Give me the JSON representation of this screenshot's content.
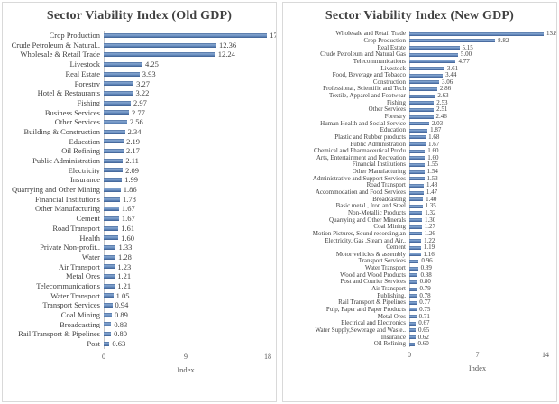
{
  "colors": {
    "bar": "#4f81bd",
    "panel_border": "#d9d9d9",
    "label_text": "#404040",
    "axis_text": "#595959",
    "axis_line": "#c6c6c6",
    "background": "#ffffff"
  },
  "chart_data": [
    {
      "type": "bar",
      "orientation": "horizontal",
      "title": "Sector Viability Index (Old GDP)",
      "xlabel": "Index",
      "xlim": [
        0,
        18
      ],
      "xticks": [
        0,
        9,
        18
      ],
      "grid": false,
      "legend": null,
      "categories": [
        "Crop Production",
        "Crude Petroleum & Natural..",
        "Wholesale & Retail Trade",
        "Livestock",
        "Real Estate",
        "Forestry",
        "Hotel & Restaurants",
        "Fishing",
        "Business Services",
        "Other Services",
        "Building & Construction",
        "Education",
        "Oil Refining",
        "Public Administration",
        "Electricity",
        "Insurance",
        "Quarrying and Other Mining",
        "Financial Institutions",
        "Other Manufacturing",
        "Cement",
        "Road Transport",
        "Health",
        "Private Non-profit..",
        "Water",
        "Air Transport",
        "Metal Ores",
        "Telecommunications",
        "Water Transport",
        "Transport Services",
        "Coal Mining",
        "Broadcasting",
        "Rail Transport & Pipelines",
        "Post"
      ],
      "values": [
        17.93,
        12.36,
        12.24,
        4.25,
        3.93,
        3.27,
        3.22,
        2.97,
        2.77,
        2.56,
        2.34,
        2.19,
        2.17,
        2.11,
        2.09,
        1.99,
        1.86,
        1.78,
        1.67,
        1.67,
        1.61,
        1.6,
        1.33,
        1.28,
        1.23,
        1.21,
        1.21,
        1.05,
        0.94,
        0.89,
        0.83,
        0.8,
        0.63
      ]
    },
    {
      "type": "bar",
      "orientation": "horizontal",
      "title": "Sector Viability Index (New GDP)",
      "xlabel": "Index",
      "xlim": [
        0,
        14
      ],
      "xticks": [
        0,
        7,
        14
      ],
      "grid": false,
      "legend": null,
      "categories": [
        "Wholesale and Retail Trade",
        "Crop Production",
        "Real Estate",
        "Crude Petroleum and Natural Gas",
        "Telecommunications",
        "Livestock",
        "Food, Beverage and Tobacco",
        "Construction",
        "Professional, Scientific and Tech",
        "Textile, Apparel and Footwear",
        "Fishing",
        "Other Services",
        "Forestry",
        "Human Health and Social Service",
        "Education",
        "Plastic and Rubber products",
        "Public Administration",
        "Chemical and Pharmaceutical Produ",
        "Arts, Entertainment and Recreation",
        "Financial Institutions",
        "Other Manufacturing",
        "Administrative and Support Services",
        "Road Transport",
        "Accommodation and Food Services",
        "Broadcasting",
        "Basic metal , Iron and Steel",
        "Non-Metallic Products",
        "Quarrying and Other Minerals",
        "Coal Mining",
        "Motion Pictures, Sound recording an",
        "Electricity, Gas ,Steam and Air..",
        "Cement",
        "Motor vehicles & assembly",
        "Transport Services",
        "Water Transport",
        "Wood and Wood Products",
        "Post and Courier Services",
        "Air Transport",
        "Publishing,",
        "Rail Transport & Pipelines",
        "Pulp, Paper and Paper Products",
        "Metal Ores",
        "Electrical and Electronics",
        "Water Supply,Sewerage and Waste..",
        "Insurance",
        "Oil Refining"
      ],
      "values": [
        13.82,
        8.82,
        5.15,
        5.0,
        4.77,
        3.61,
        3.44,
        3.06,
        2.86,
        2.63,
        2.53,
        2.51,
        2.46,
        2.03,
        1.87,
        1.68,
        1.67,
        1.6,
        1.6,
        1.55,
        1.54,
        1.53,
        1.48,
        1.47,
        1.4,
        1.35,
        1.32,
        1.3,
        1.27,
        1.26,
        1.22,
        1.19,
        1.16,
        0.96,
        0.89,
        0.88,
        0.8,
        0.79,
        0.78,
        0.77,
        0.75,
        0.71,
        0.67,
        0.65,
        0.62,
        0.6
      ]
    }
  ]
}
